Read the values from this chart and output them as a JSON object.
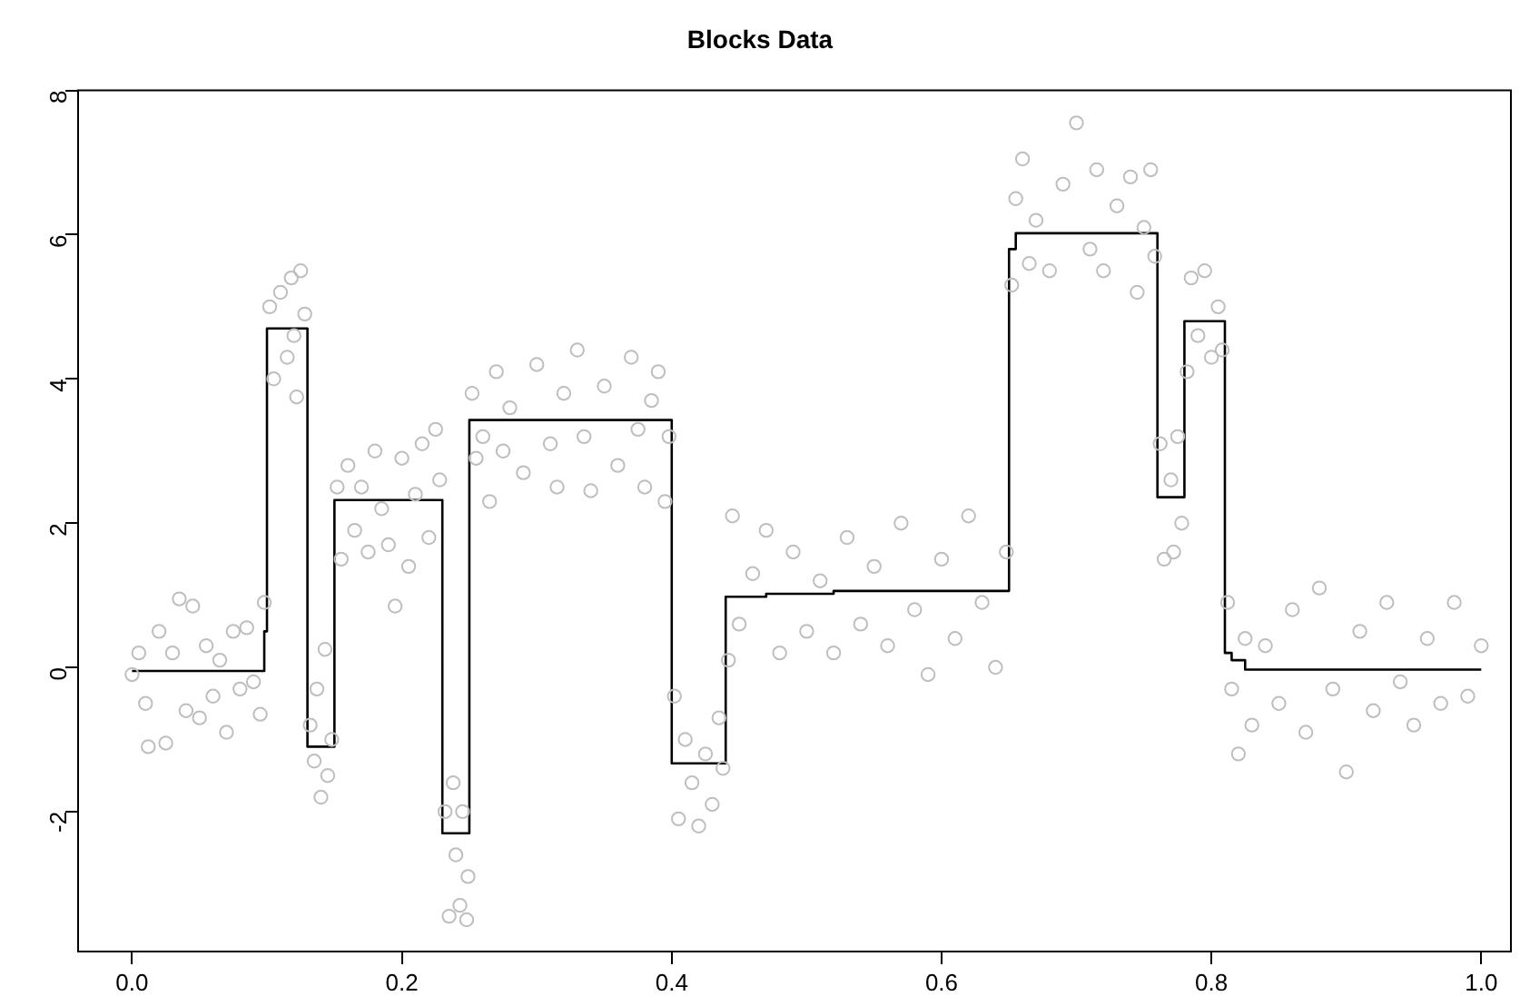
{
  "chart_data": {
    "type": "scatter",
    "title": "Blocks Data",
    "marker": "circle",
    "grid": false,
    "xlim": [
      -0.04,
      1.022
    ],
    "ylim": [
      -3.94,
      8.0
    ],
    "xticks": [
      {
        "value": 0,
        "label": "0.0"
      },
      {
        "value": 0.2,
        "label": "0.2"
      },
      {
        "value": 0.4,
        "label": "0.4"
      },
      {
        "value": 0.6,
        "label": "0.6"
      },
      {
        "value": 0.8,
        "label": "0.8"
      },
      {
        "value": 1,
        "label": "1.0"
      }
    ],
    "yticks": [
      -2,
      0,
      2,
      4,
      6,
      8
    ],
    "series": [
      {
        "color": "#bebebe",
        "x": [
          0.0,
          0.005,
          0.01,
          0.012,
          0.02,
          0.025,
          0.03,
          0.035,
          0.04,
          0.045,
          0.05,
          0.055,
          0.06,
          0.065,
          0.07,
          0.075,
          0.08,
          0.085,
          0.09,
          0.095,
          0.098,
          0.102,
          0.105,
          0.11,
          0.115,
          0.118,
          0.12,
          0.122,
          0.125,
          0.128,
          0.132,
          0.135,
          0.137,
          0.14,
          0.143,
          0.145,
          0.148,
          0.152,
          0.155,
          0.16,
          0.165,
          0.17,
          0.175,
          0.18,
          0.185,
          0.19,
          0.195,
          0.2,
          0.205,
          0.21,
          0.215,
          0.22,
          0.225,
          0.228,
          0.232,
          0.235,
          0.238,
          0.24,
          0.243,
          0.245,
          0.248,
          0.249,
          0.252,
          0.255,
          0.26,
          0.265,
          0.27,
          0.275,
          0.28,
          0.29,
          0.3,
          0.31,
          0.315,
          0.32,
          0.33,
          0.335,
          0.34,
          0.35,
          0.36,
          0.37,
          0.375,
          0.38,
          0.385,
          0.39,
          0.395,
          0.398,
          0.402,
          0.405,
          0.41,
          0.415,
          0.42,
          0.425,
          0.43,
          0.435,
          0.438,
          0.442,
          0.445,
          0.45,
          0.46,
          0.47,
          0.48,
          0.49,
          0.5,
          0.51,
          0.52,
          0.53,
          0.54,
          0.55,
          0.56,
          0.57,
          0.58,
          0.59,
          0.6,
          0.61,
          0.62,
          0.63,
          0.64,
          0.648,
          0.652,
          0.655,
          0.66,
          0.665,
          0.67,
          0.68,
          0.69,
          0.7,
          0.71,
          0.715,
          0.72,
          0.73,
          0.74,
          0.745,
          0.75,
          0.755,
          0.758,
          0.762,
          0.765,
          0.77,
          0.772,
          0.775,
          0.778,
          0.782,
          0.785,
          0.79,
          0.795,
          0.8,
          0.805,
          0.808,
          0.812,
          0.815,
          0.82,
          0.825,
          0.83,
          0.84,
          0.85,
          0.86,
          0.87,
          0.88,
          0.89,
          0.9,
          0.91,
          0.92,
          0.93,
          0.94,
          0.95,
          0.96,
          0.97,
          0.98,
          0.99,
          1.0
        ],
        "values": [
          -0.1,
          0.2,
          -0.5,
          -1.1,
          0.5,
          -1.05,
          0.2,
          0.95,
          -0.6,
          0.85,
          -0.7,
          0.3,
          -0.4,
          0.1,
          -0.9,
          0.5,
          -0.3,
          0.55,
          -0.2,
          -0.65,
          0.9,
          5.0,
          4.0,
          5.2,
          4.3,
          5.4,
          4.6,
          3.75,
          5.5,
          4.9,
          -0.8,
          -1.3,
          -0.3,
          -1.8,
          0.25,
          -1.5,
          -1.0,
          2.5,
          1.5,
          2.8,
          1.9,
          2.5,
          1.6,
          3.0,
          2.2,
          1.7,
          0.85,
          2.9,
          1.4,
          2.4,
          3.1,
          1.8,
          3.3,
          2.6,
          -2.0,
          -3.45,
          -1.6,
          -2.6,
          -3.3,
          -2.0,
          -3.5,
          -2.9,
          3.8,
          2.9,
          3.2,
          2.3,
          4.1,
          3.0,
          3.6,
          2.7,
          4.2,
          3.1,
          2.5,
          3.8,
          4.4,
          3.2,
          2.45,
          3.9,
          2.8,
          4.3,
          3.3,
          2.5,
          3.7,
          4.1,
          2.3,
          3.2,
          -0.4,
          -2.1,
          -1.0,
          -1.6,
          -2.2,
          -1.2,
          -1.9,
          -0.7,
          -1.4,
          0.1,
          2.1,
          0.6,
          1.3,
          1.9,
          0.2,
          1.6,
          0.5,
          1.2,
          0.2,
          1.8,
          0.6,
          1.4,
          0.3,
          2.0,
          0.8,
          -0.1,
          1.5,
          0.4,
          2.1,
          0.9,
          0.0,
          1.6,
          5.3,
          6.5,
          7.05,
          5.6,
          6.2,
          5.5,
          6.7,
          7.55,
          5.8,
          6.9,
          5.5,
          6.4,
          6.8,
          5.2,
          6.1,
          6.9,
          5.7,
          3.1,
          1.5,
          2.6,
          1.6,
          3.2,
          2.0,
          4.1,
          5.4,
          4.6,
          5.5,
          4.3,
          5.0,
          4.4,
          0.9,
          -0.3,
          -1.2,
          0.4,
          -0.8,
          0.3,
          -0.5,
          0.8,
          -0.9,
          1.1,
          -0.3,
          -1.45,
          0.5,
          -0.6,
          0.9,
          -0.2,
          -0.8,
          0.4,
          -0.5,
          0.9,
          -0.4,
          0.3
        ]
      },
      {
        "type": "step",
        "color": "#000000",
        "line_style": "solid",
        "marker": "none",
        "x": [
          0,
          0.098,
          0.1,
          0.13,
          0.15,
          0.23,
          0.25,
          0.4,
          0.44,
          0.47,
          0.52,
          0.65,
          0.655,
          0.76,
          0.78,
          0.81,
          0.815,
          0.825,
          1.0
        ],
        "values": [
          -0.05,
          0.5,
          4.7,
          -1.1,
          2.32,
          -2.3,
          3.43,
          -1.33,
          0.98,
          1.02,
          1.06,
          5.8,
          6.02,
          2.36,
          4.8,
          0.2,
          0.1,
          -0.03,
          -0.03
        ]
      }
    ]
  }
}
